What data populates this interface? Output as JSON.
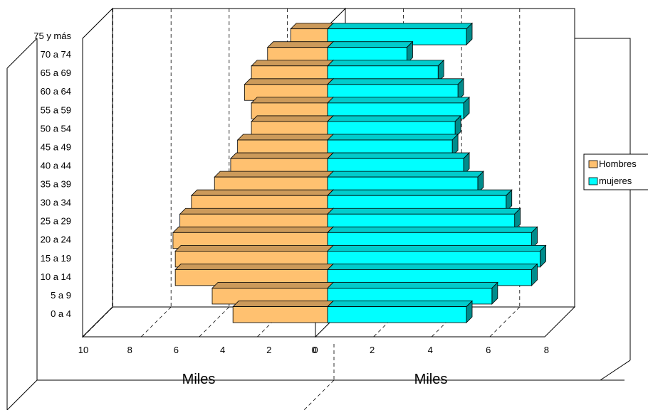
{
  "chart_data": [
    {
      "type": "bar",
      "panel": "left",
      "orientation": "horizontal",
      "categories": [
        "0 a 4",
        "5 a 9",
        "10 a 14",
        "15 a 19",
        "20 a 24",
        "25 a 29",
        "30 a 34",
        "35 a 39",
        "40 a 44",
        "45 a 49",
        "50 a 54",
        "55 a 59",
        "60 a 64",
        "65 a 69",
        "70 a 74",
        "75 y más"
      ],
      "series": [
        {
          "name": "Hombres",
          "color": "#FFC170",
          "values": [
            4.1,
            5.0,
            6.6,
            6.6,
            6.7,
            6.4,
            5.9,
            4.9,
            4.2,
            3.9,
            3.3,
            3.3,
            3.6,
            3.3,
            2.6,
            1.6
          ]
        }
      ],
      "ticks": [
        "10",
        "8",
        "6",
        "4",
        "2",
        "0"
      ],
      "xlabel": "Miles",
      "xlim": [
        10,
        0
      ],
      "grid": true
    },
    {
      "type": "bar",
      "panel": "right",
      "orientation": "horizontal",
      "categories": [
        "0 a 4",
        "5 a 9",
        "10 a 14",
        "15 a 19",
        "20 a 24",
        "25 a 29",
        "30 a 34",
        "35 a 39",
        "40 a 44",
        "45 a 49",
        "50 a 54",
        "55 a 59",
        "60 a 64",
        "65 a 69",
        "70 a 74",
        "75 y más"
      ],
      "series": [
        {
          "name": "mujeres",
          "color": "#00FFFF",
          "values": [
            4.9,
            5.8,
            7.2,
            7.5,
            7.2,
            6.6,
            6.3,
            5.3,
            4.8,
            4.4,
            4.5,
            4.8,
            4.6,
            3.9,
            2.8,
            4.9
          ]
        }
      ],
      "ticks": [
        "0",
        "2",
        "4",
        "6",
        "8"
      ],
      "xlabel": "Miles",
      "xlim": [
        0,
        8
      ],
      "grid": true
    }
  ],
  "legend": {
    "placement": "right",
    "items": [
      {
        "label": "Hombres",
        "color": "#FFC170"
      },
      {
        "label": "mujeres",
        "color": "#00FFFF"
      }
    ]
  }
}
